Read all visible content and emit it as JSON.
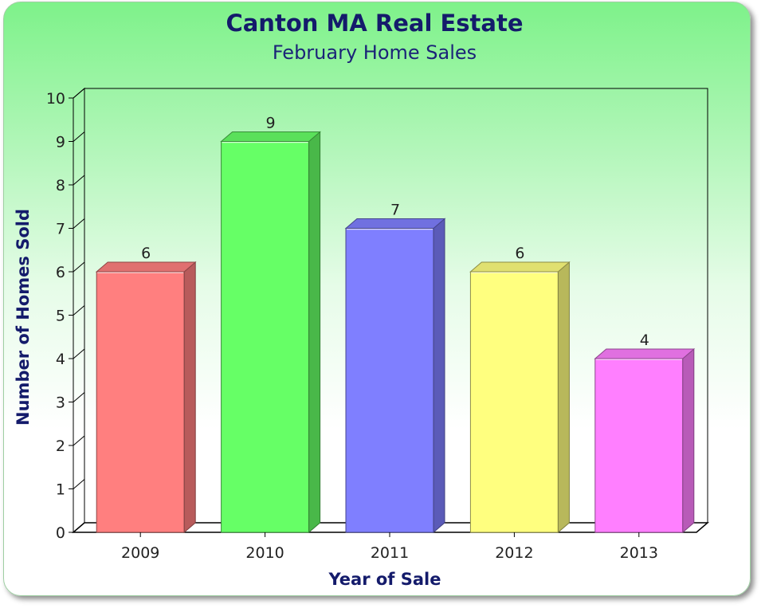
{
  "chart_data": {
    "type": "bar",
    "title": "Canton MA Real Estate",
    "subtitle": "February Home Sales",
    "xlabel": "Year of Sale",
    "ylabel": "Number of Homes Sold",
    "categories": [
      "2009",
      "2010",
      "2011",
      "2012",
      "2013"
    ],
    "values": [
      6,
      9,
      7,
      6,
      4
    ],
    "data_labels": [
      "6",
      "9",
      "7",
      "6",
      "4"
    ],
    "colors": [
      "#ff7f7f",
      "#66ff66",
      "#7f7fff",
      "#ffff7f",
      "#ff7fff"
    ],
    "ylim": [
      0,
      10
    ],
    "yticks": [
      "0",
      "1",
      "2",
      "3",
      "4",
      "5",
      "6",
      "7",
      "8",
      "9",
      "10"
    ],
    "grid": false,
    "legend": "none",
    "style": "3d-bar"
  }
}
